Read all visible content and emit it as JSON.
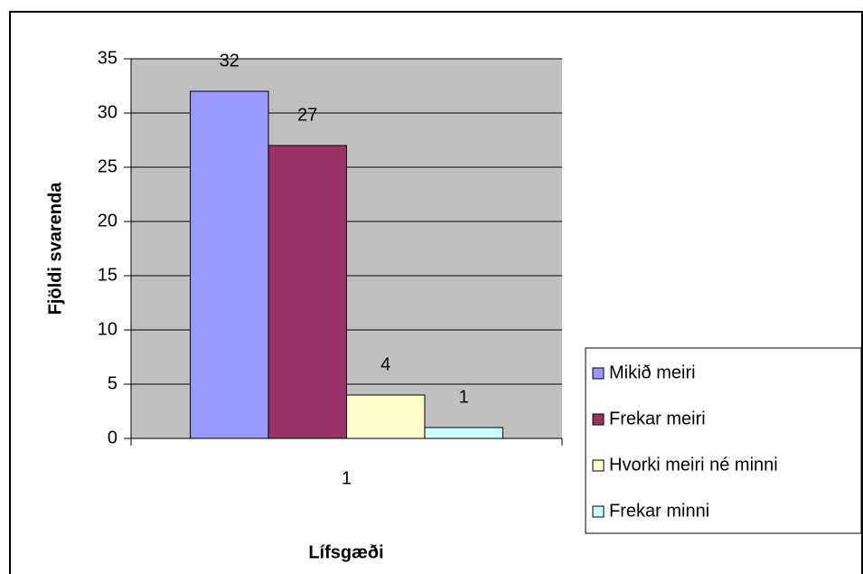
{
  "chart_data": {
    "type": "bar",
    "categories": [
      "1"
    ],
    "series": [
      {
        "name": "Mikið meiri",
        "color": "#9999ff",
        "values": [
          32
        ]
      },
      {
        "name": "Frekar meiri",
        "color": "#993366",
        "values": [
          27
        ]
      },
      {
        "name": "Hvorki meiri né minni",
        "color": "#ffffcc",
        "values": [
          4
        ]
      },
      {
        "name": "Frekar minni",
        "color": "#ccffff",
        "values": [
          1
        ]
      }
    ],
    "ylabel": "Fjöldi svarenda",
    "xlabel": "Lífsgæði",
    "ylim": [
      0,
      35
    ],
    "yticks": [
      0,
      5,
      10,
      15,
      20,
      25,
      30,
      35
    ],
    "grid": true,
    "legend": "right"
  }
}
